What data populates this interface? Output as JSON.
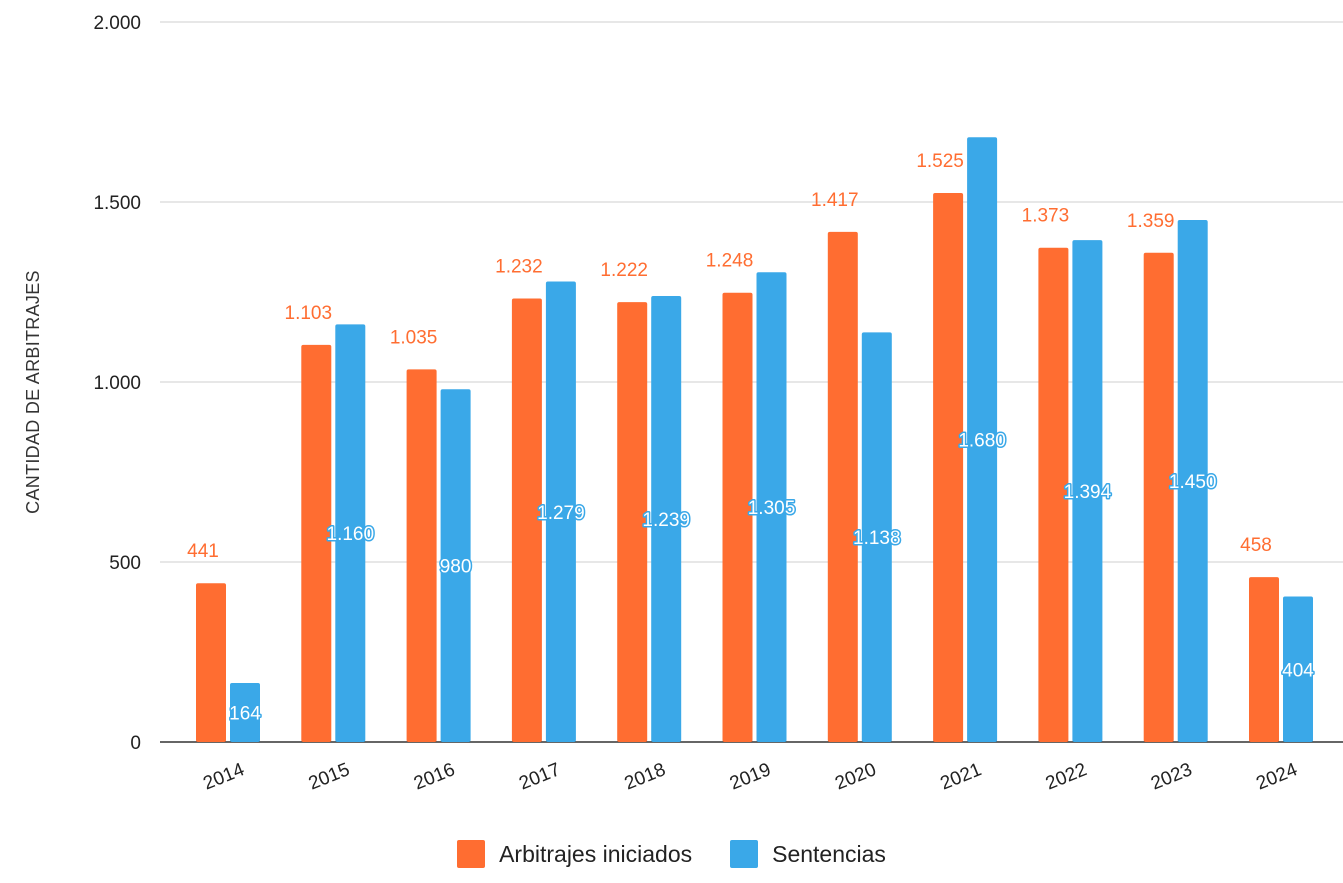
{
  "chart_data": {
    "type": "bar",
    "title": "",
    "xlabel": "",
    "ylabel": "CANTIDAD DE ARBITRAJES",
    "ylim": [
      0,
      2000
    ],
    "yticks": [
      {
        "value": 0,
        "label": "0"
      },
      {
        "value": 500,
        "label": "500"
      },
      {
        "value": 1000,
        "label": "1.000"
      },
      {
        "value": 1500,
        "label": "1.500"
      },
      {
        "value": 2000,
        "label": "2.000"
      }
    ],
    "grid": true,
    "legend_position": "bottom",
    "categories": [
      "2014",
      "2015",
      "2016",
      "2017",
      "2018",
      "2019",
      "2020",
      "2021",
      "2022",
      "2023",
      "2024"
    ],
    "series": [
      {
        "name": "Arbitrajes iniciados",
        "color": "#ff6d31",
        "values": [
          441,
          1103,
          1035,
          1232,
          1222,
          1248,
          1417,
          1525,
          1373,
          1359,
          458
        ],
        "labels": [
          "441",
          "1.103",
          "1.035",
          "1.232",
          "1.222",
          "1.248",
          "1.417",
          "1.525",
          "1.373",
          "1.359",
          "458"
        ]
      },
      {
        "name": "Sentencias",
        "color": "#3aa8e8",
        "values": [
          164,
          1160,
          980,
          1279,
          1239,
          1305,
          1138,
          1680,
          1394,
          1450,
          404
        ],
        "labels": [
          "164",
          "1.160",
          "980",
          "1.279",
          "1.239",
          "1.305",
          "1.138",
          "1.680",
          "1.394",
          "1.450",
          "404"
        ]
      }
    ]
  }
}
